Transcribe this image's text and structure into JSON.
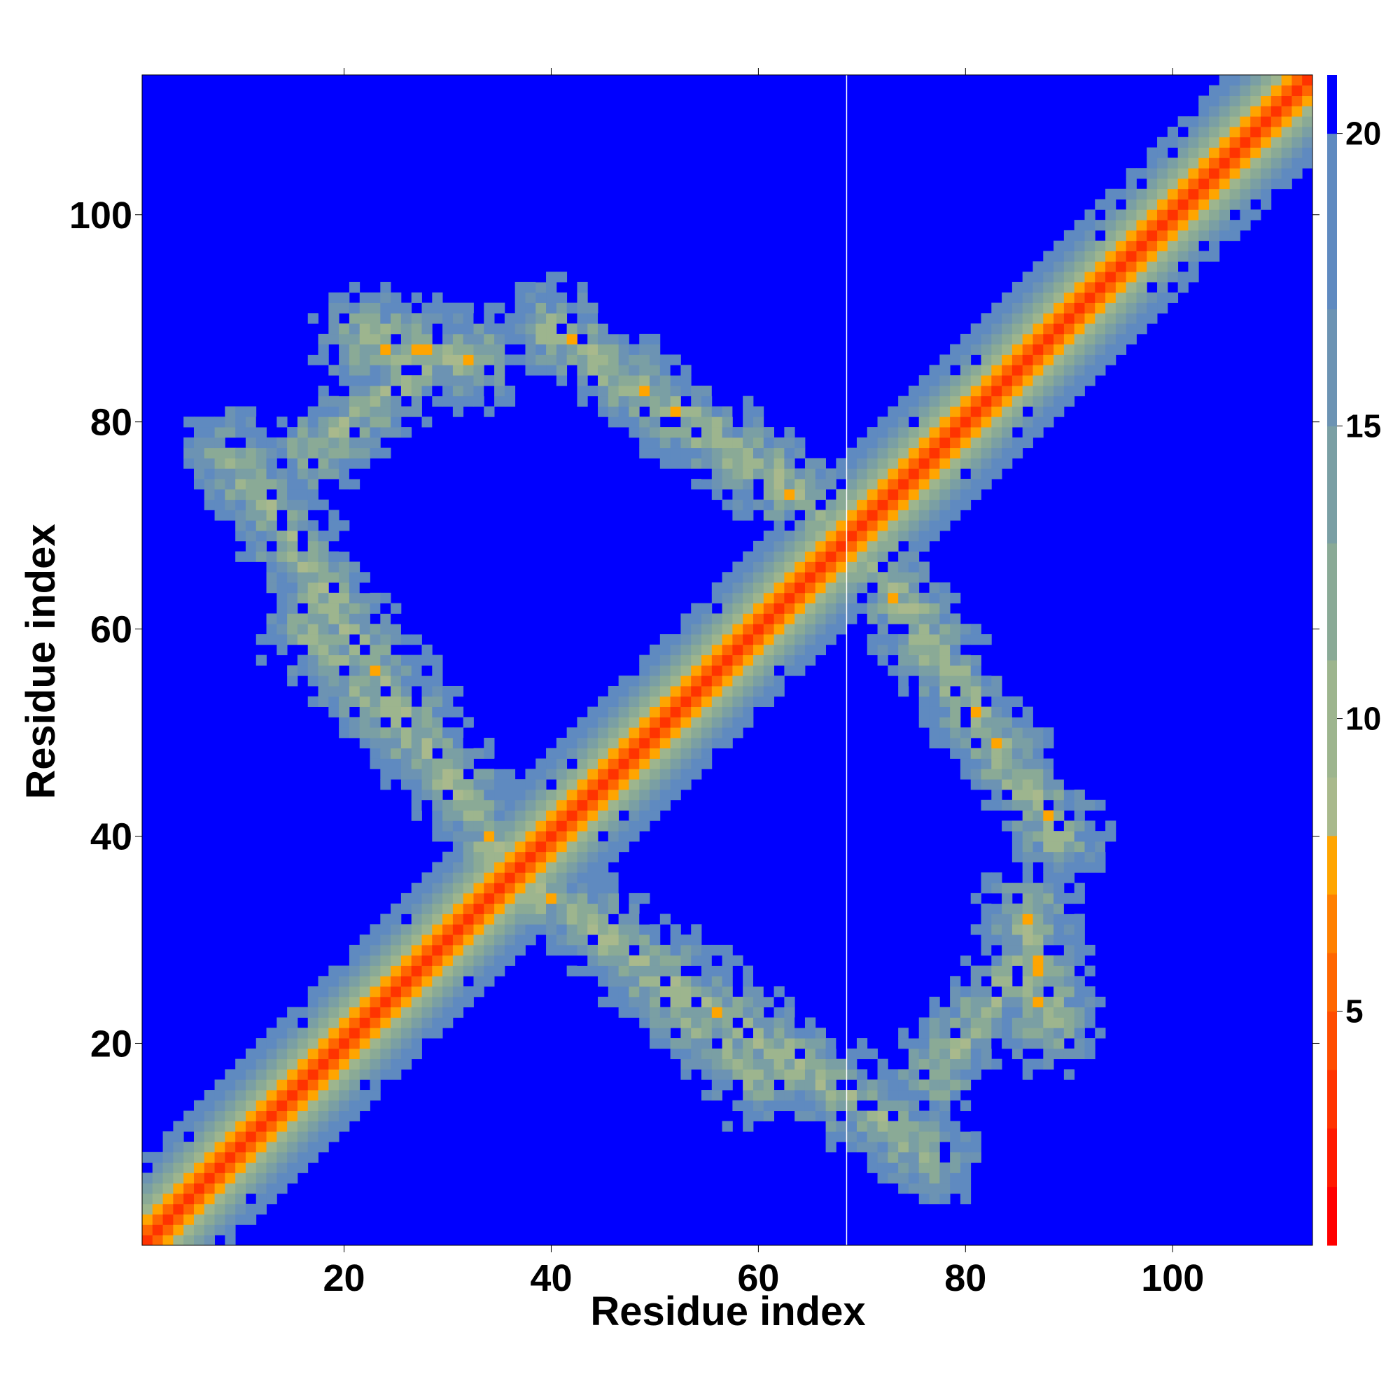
{
  "chart_data": {
    "type": "heatmap",
    "title": "",
    "xlabel": "Residue index",
    "ylabel": "Residue index",
    "n_residues": 113,
    "xlim": [
      1,
      113
    ],
    "ylim": [
      1,
      113
    ],
    "x_ticks": [
      20,
      40,
      60,
      80,
      100
    ],
    "y_ticks": [
      20,
      40,
      60,
      80,
      100
    ],
    "colorbar": {
      "range": [
        1,
        21
      ],
      "ticks": [
        5,
        10,
        15,
        20
      ],
      "tick_labels": [
        "5",
        "10",
        "15",
        "20"
      ],
      "palette": [
        {
          "max": 2,
          "color": "#ff0000"
        },
        {
          "max": 3,
          "color": "#ff1a00"
        },
        {
          "max": 4,
          "color": "#ff3300"
        },
        {
          "max": 5,
          "color": "#ff4d00"
        },
        {
          "max": 6,
          "color": "#ff6600"
        },
        {
          "max": 7,
          "color": "#ff8000"
        },
        {
          "max": 8,
          "color": "#ffa500"
        },
        {
          "max": 9,
          "color": "#a9b98c"
        },
        {
          "max": 11,
          "color": "#9db58e"
        },
        {
          "max": 13,
          "color": "#8aaa96"
        },
        {
          "max": 15,
          "color": "#7a9fa4"
        },
        {
          "max": 17,
          "color": "#6c93b3"
        },
        {
          "max": 20,
          "color": "#5f8ac0"
        },
        {
          "max": 21,
          "color": "#0000ff"
        }
      ],
      "background_color": "#0000ff"
    },
    "chain_break_after_residue": 68,
    "diagonal": {
      "d0": 3.8,
      "per_residue": 1.9
    },
    "contact_bands": [
      {
        "from": [
          9,
          77
        ],
        "to": [
          36,
          37
        ],
        "center_distance": 10.5
      },
      {
        "from": [
          40,
          89
        ],
        "to": [
          68,
          70
        ],
        "center_distance": 10.5
      },
      {
        "from": [
          45,
          30
        ],
        "to": [
          60,
          16
        ],
        "center_distance": 11.5
      },
      {
        "from": [
          77,
          17
        ],
        "to": [
          86,
          28
        ],
        "center_distance": 11.0
      },
      {
        "from": [
          22,
          88
        ],
        "to": [
          32,
          86
        ],
        "center_distance": 9.5
      }
    ]
  }
}
